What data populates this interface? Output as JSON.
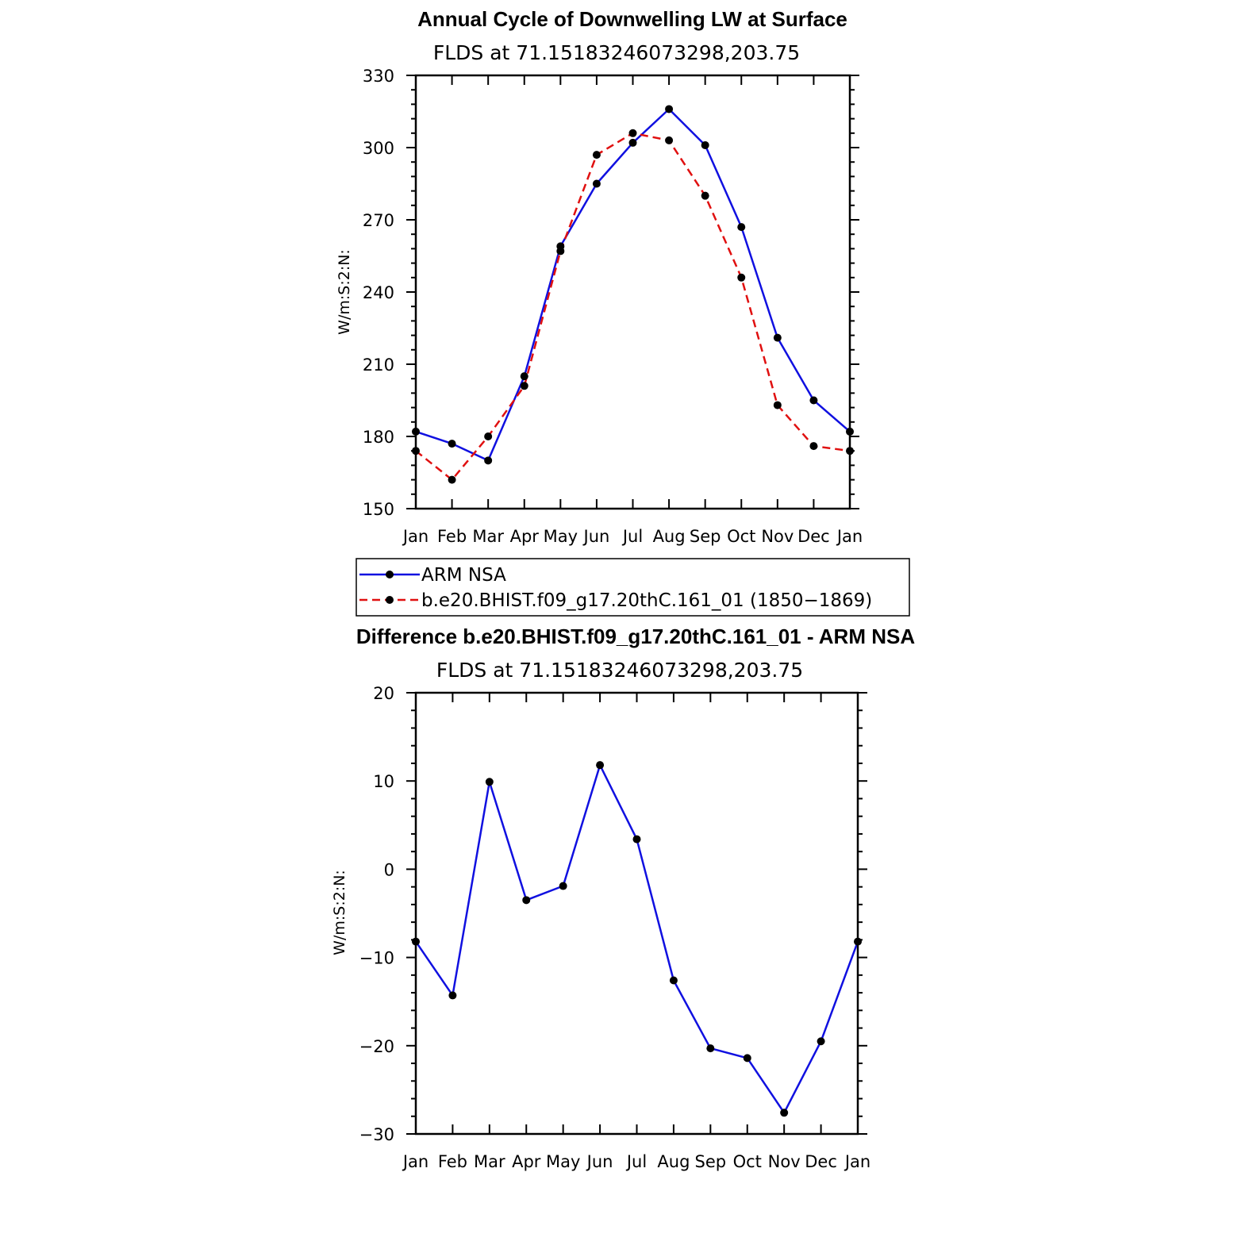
{
  "chart_data": [
    {
      "type": "line",
      "title": "Annual Cycle of Downwelling LW at Surface",
      "subtitle": "FLDS at 71.15183246073298,203.75",
      "ylabel": "W/m:S:2:N:",
      "xlabel": "",
      "categories": [
        "Jan",
        "Feb",
        "Mar",
        "Apr",
        "May",
        "Jun",
        "Jul",
        "Aug",
        "Sep",
        "Oct",
        "Nov",
        "Dec",
        "Jan"
      ],
      "ylim": [
        150,
        330
      ],
      "yticks": [
        "150",
        "180",
        "210",
        "240",
        "270",
        "300",
        "330"
      ],
      "yticks_values": [
        150,
        180,
        210,
        240,
        270,
        300,
        330
      ],
      "series": [
        {
          "name": "ARM NSA",
          "color": "#1010e0",
          "dash": "solid",
          "values": [
            182,
            177,
            170,
            205,
            259,
            285,
            302,
            316,
            301,
            267,
            221,
            195,
            182
          ]
        },
        {
          "name": "b.e20.BHIST.f09_g17.20thC.161_01 (1850−1869)",
          "color": "#e01010",
          "dash": "dashed",
          "values": [
            174,
            162,
            180,
            201,
            257,
            297,
            306,
            303,
            280,
            246,
            193,
            176,
            174
          ]
        }
      ],
      "legend": "bottom"
    },
    {
      "type": "line",
      "title": "Difference b.e20.BHIST.f09_g17.20thC.161_01 - ARM NSA",
      "subtitle": "FLDS at 71.15183246073298,203.75",
      "ylabel": "W/m:S:2:N:",
      "xlabel": "",
      "categories": [
        "Jan",
        "Feb",
        "Mar",
        "Apr",
        "May",
        "Jun",
        "Jul",
        "Aug",
        "Sep",
        "Oct",
        "Nov",
        "Dec",
        "Jan"
      ],
      "ylim": [
        -30,
        20
      ],
      "yticks": [
        "−30",
        "−20",
        "−10",
        "0",
        "10",
        "20"
      ],
      "yticks_values": [
        -30,
        -20,
        -10,
        0,
        10,
        20
      ],
      "series": [
        {
          "color": "#1010e0",
          "dash": "solid",
          "values": [
            -8.2,
            -14.3,
            9.9,
            -3.5,
            -1.9,
            11.8,
            3.4,
            -12.6,
            -20.3,
            -21.4,
            -27.6,
            -19.5,
            -8.2
          ]
        }
      ]
    }
  ]
}
